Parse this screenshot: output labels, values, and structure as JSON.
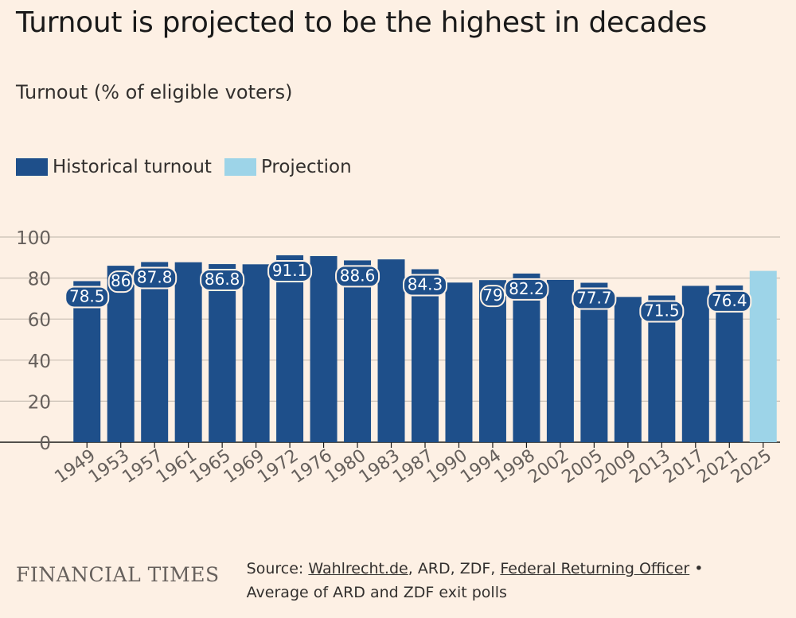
{
  "header": {
    "title": "Turnout is projected to be the highest in decades",
    "subtitle": "Turnout (% of eligible voters)"
  },
  "legend": {
    "historical": "Historical turnout",
    "projection": "Projection"
  },
  "colors": {
    "historical": "#1e4f8a",
    "projection": "#9dd4e8",
    "background": "#fdf0e4",
    "gridline": "#c9bfb5",
    "axis": "#66605c"
  },
  "chart_data": {
    "type": "bar",
    "title": "Turnout is projected to be the highest in decades",
    "ylabel": "Turnout (% of eligible voters)",
    "xlabel": "",
    "ylim": [
      0,
      100
    ],
    "yticks": [
      0,
      20,
      40,
      60,
      80,
      100
    ],
    "categories": [
      "1949",
      "1953",
      "1957",
      "1961",
      "1965",
      "1969",
      "1972",
      "1976",
      "1980",
      "1983",
      "1987",
      "1990",
      "1994",
      "1998",
      "2002",
      "2005",
      "2009",
      "2013",
      "2017",
      "2021",
      "2025"
    ],
    "series": [
      {
        "name": "Historical turnout",
        "values": [
          78.5,
          86,
          87.8,
          87.7,
          86.8,
          86.7,
          91.1,
          90.7,
          88.6,
          89.1,
          84.3,
          77.8,
          79,
          82.2,
          79.1,
          77.7,
          70.8,
          71.5,
          76.2,
          76.4,
          null
        ]
      },
      {
        "name": "Projection",
        "values": [
          null,
          null,
          null,
          null,
          null,
          null,
          null,
          null,
          null,
          null,
          null,
          null,
          null,
          null,
          null,
          null,
          null,
          null,
          null,
          null,
          83.5
        ]
      }
    ],
    "data_labels": [
      {
        "category": "1949",
        "text": "78.5"
      },
      {
        "category": "1953",
        "text": "86"
      },
      {
        "category": "1957",
        "text": "87.8"
      },
      {
        "category": "1965",
        "text": "86.8"
      },
      {
        "category": "1972",
        "text": "91.1"
      },
      {
        "category": "1980",
        "text": "88.6"
      },
      {
        "category": "1987",
        "text": "84.3"
      },
      {
        "category": "1994",
        "text": "79"
      },
      {
        "category": "1998",
        "text": "82.2"
      },
      {
        "category": "2005",
        "text": "77.7"
      },
      {
        "category": "2013",
        "text": "71.5"
      },
      {
        "category": "2021",
        "text": "76.4"
      }
    ]
  },
  "footer": {
    "brand": "FINANCIAL TIMES",
    "source_prefix": "Source: ",
    "source_link1": "Wahlrecht.de",
    "source_mid": ", ARD, ZDF, ",
    "source_link2": "Federal Returning Officer",
    "source_suffix": " •",
    "source_line2": "Average of ARD and ZDF exit polls"
  }
}
